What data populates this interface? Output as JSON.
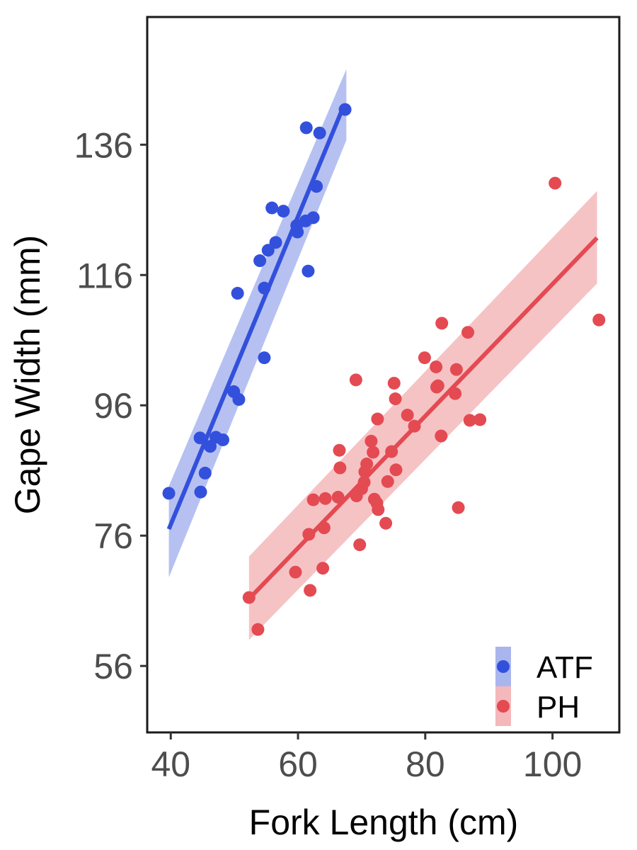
{
  "chart_data": {
    "type": "scatter",
    "title": "",
    "xlabel": "Fork Length (cm)",
    "ylabel": "Gape Width (mm)",
    "xlim": [
      36.3,
      110.5
    ],
    "ylim": [
      45.8,
      155.6
    ],
    "xticks": [
      40,
      60,
      80,
      100
    ],
    "yticks": [
      56,
      76,
      96,
      116,
      136
    ],
    "grid": false,
    "legend_position": "bottom-right",
    "series": [
      {
        "name": "ATF",
        "color": "#3350dc",
        "band_color": "#a9b6ee",
        "points": [
          {
            "x": 39.7,
            "y": 82.5
          },
          {
            "x": 44.7,
            "y": 82.7
          },
          {
            "x": 44.6,
            "y": 91.0
          },
          {
            "x": 45.4,
            "y": 85.6
          },
          {
            "x": 46.2,
            "y": 89.7
          },
          {
            "x": 47.1,
            "y": 91.1
          },
          {
            "x": 48.2,
            "y": 90.7
          },
          {
            "x": 49.9,
            "y": 98.1
          },
          {
            "x": 50.7,
            "y": 96.9
          },
          {
            "x": 50.5,
            "y": 113.2
          },
          {
            "x": 54.0,
            "y": 118.2
          },
          {
            "x": 54.7,
            "y": 114.0
          },
          {
            "x": 54.7,
            "y": 103.3
          },
          {
            "x": 55.3,
            "y": 119.8
          },
          {
            "x": 55.9,
            "y": 126.3
          },
          {
            "x": 56.5,
            "y": 121.0
          },
          {
            "x": 57.7,
            "y": 125.8
          },
          {
            "x": 59.8,
            "y": 123.6
          },
          {
            "x": 59.9,
            "y": 122.6
          },
          {
            "x": 61.2,
            "y": 124.3
          },
          {
            "x": 61.3,
            "y": 138.6
          },
          {
            "x": 61.6,
            "y": 116.6
          },
          {
            "x": 62.4,
            "y": 124.8
          },
          {
            "x": 62.9,
            "y": 129.6
          },
          {
            "x": 63.4,
            "y": 137.8
          },
          {
            "x": 67.4,
            "y": 141.4
          }
        ],
        "fit": {
          "x": [
            39.7,
            67.2
          ],
          "y": [
            77.0,
            142.0
          ]
        },
        "band": {
          "x": [
            39.7,
            67.6
          ],
          "lower": [
            69.6,
            136.7
          ],
          "upper": [
            83.6,
            147.6
          ]
        }
      },
      {
        "name": "PH",
        "color": "#e44a52",
        "band_color": "#f4b8bb",
        "points": [
          {
            "x": 52.3,
            "y": 66.5
          },
          {
            "x": 53.7,
            "y": 61.6
          },
          {
            "x": 59.6,
            "y": 70.4
          },
          {
            "x": 61.7,
            "y": 76.2
          },
          {
            "x": 61.9,
            "y": 67.6
          },
          {
            "x": 62.4,
            "y": 81.5
          },
          {
            "x": 63.9,
            "y": 71.0
          },
          {
            "x": 64.1,
            "y": 77.2
          },
          {
            "x": 64.3,
            "y": 81.7
          },
          {
            "x": 66.3,
            "y": 81.9
          },
          {
            "x": 66.5,
            "y": 89.1
          },
          {
            "x": 66.6,
            "y": 86.4
          },
          {
            "x": 69.1,
            "y": 99.9
          },
          {
            "x": 69.2,
            "y": 82.1
          },
          {
            "x": 69.7,
            "y": 74.6
          },
          {
            "x": 70.0,
            "y": 83.2
          },
          {
            "x": 70.4,
            "y": 84.2
          },
          {
            "x": 70.5,
            "y": 85.8
          },
          {
            "x": 70.8,
            "y": 87.0
          },
          {
            "x": 71.5,
            "y": 90.5
          },
          {
            "x": 71.8,
            "y": 88.8
          },
          {
            "x": 72.0,
            "y": 81.6
          },
          {
            "x": 72.4,
            "y": 81.0
          },
          {
            "x": 72.5,
            "y": 93.9
          },
          {
            "x": 72.6,
            "y": 80.0
          },
          {
            "x": 73.8,
            "y": 77.9
          },
          {
            "x": 74.1,
            "y": 84.3
          },
          {
            "x": 74.7,
            "y": 88.9
          },
          {
            "x": 75.1,
            "y": 99.4
          },
          {
            "x": 75.3,
            "y": 97.0
          },
          {
            "x": 75.4,
            "y": 86.1
          },
          {
            "x": 77.2,
            "y": 94.5
          },
          {
            "x": 78.3,
            "y": 92.8
          },
          {
            "x": 79.9,
            "y": 103.3
          },
          {
            "x": 81.7,
            "y": 101.9
          },
          {
            "x": 81.8,
            "y": 98.8
          },
          {
            "x": 82.0,
            "y": 99.0
          },
          {
            "x": 82.5,
            "y": 91.3
          },
          {
            "x": 82.6,
            "y": 108.6
          },
          {
            "x": 84.7,
            "y": 97.8
          },
          {
            "x": 84.9,
            "y": 101.5
          },
          {
            "x": 85.2,
            "y": 80.3
          },
          {
            "x": 86.7,
            "y": 107.2
          },
          {
            "x": 87.0,
            "y": 93.7
          },
          {
            "x": 88.6,
            "y": 93.8
          },
          {
            "x": 100.4,
            "y": 130.1
          },
          {
            "x": 107.3,
            "y": 109.1
          }
        ],
        "fit": {
          "x": [
            52.3,
            107.0
          ],
          "y": [
            66.3,
            121.7
          ]
        },
        "band": {
          "x": [
            52.3,
            107.0
          ],
          "lower": [
            60.0,
            114.7
          ],
          "upper": [
            72.8,
            128.9
          ]
        }
      }
    ]
  }
}
